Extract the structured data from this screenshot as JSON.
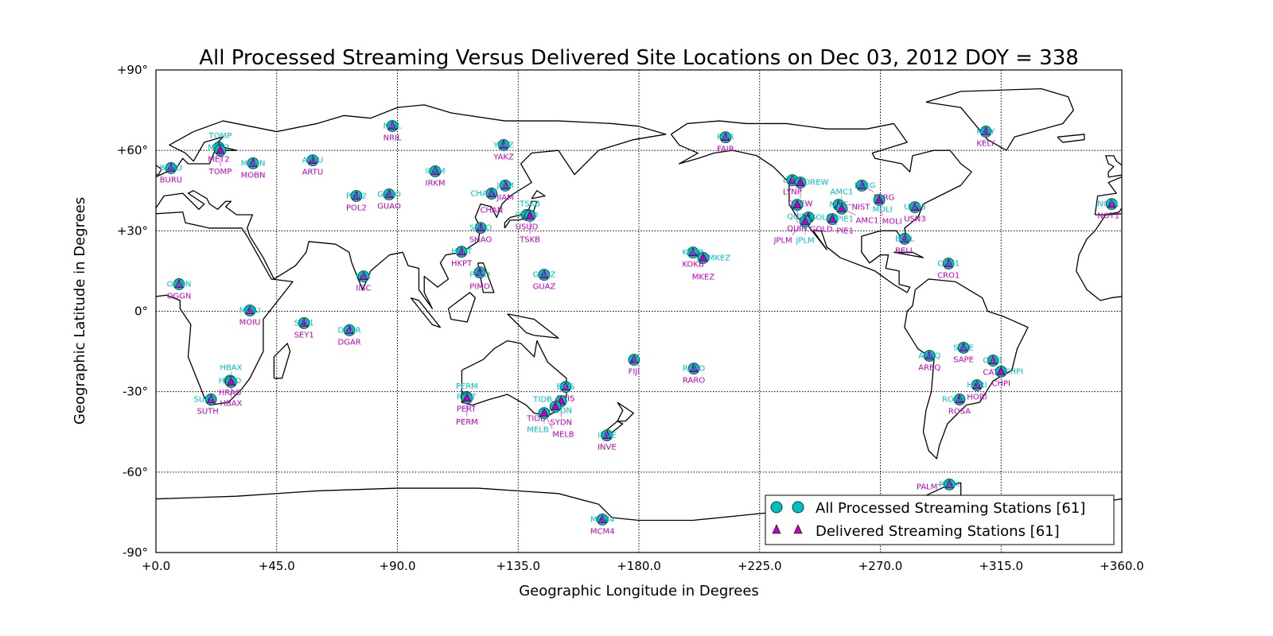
{
  "chart_data": {
    "type": "scatter",
    "title": "All Processed Streaming Versus Delivered Site Locations on Dec 03, 2012 DOY = 338",
    "xlabel": "Geographic Longitude in Degrees",
    "ylabel": "Geographic Latitude in Degrees",
    "xlim": [
      0,
      360
    ],
    "ylim": [
      -90,
      90
    ],
    "grid": true,
    "projection": "equirectangular world map with coastlines",
    "x_ticks": [
      "+0.0",
      "+45.0",
      "+90.0",
      "+135.0",
      "+180.0",
      "+225.0",
      "+270.0",
      "+315.0",
      "+360.0"
    ],
    "y_ticks": [
      "+90°",
      "+60°",
      "+30°",
      "0°",
      "-30°",
      "-60°",
      "-90°"
    ],
    "legend": {
      "placement": "lower-right",
      "entries": [
        {
          "label": "All Processed Streaming Stations [61]",
          "marker": "circle",
          "color": "#00bfbf"
        },
        {
          "label": "Delivered Streaming Stations [61]",
          "marker": "triangle",
          "color": "#bf00bf"
        }
      ]
    },
    "series": [
      {
        "name": "All Processed Streaming Stations [61]",
        "marker": "circle",
        "color": "#00bfbf"
      },
      {
        "name": "Delivered Streaming Stations [61]",
        "marker": "triangle",
        "color": "#bf00bf"
      }
    ],
    "stations": [
      {
        "id": "BURU",
        "lon": 5.6,
        "lat": 53.4
      },
      {
        "id": "MET2",
        "lon": 23.4,
        "lat": 61.1
      },
      {
        "id": "TOMP",
        "lon": 24.0,
        "lat": 60.0
      },
      {
        "id": "MOBN",
        "lon": 36.2,
        "lat": 55.2
      },
      {
        "id": "ARTU",
        "lon": 58.4,
        "lat": 56.3
      },
      {
        "id": "NRIL",
        "lon": 88.1,
        "lat": 69.1
      },
      {
        "id": "IRKM",
        "lon": 104.1,
        "lat": 52.2
      },
      {
        "id": "POL2",
        "lon": 74.7,
        "lat": 43.0
      },
      {
        "id": "GUAO",
        "lon": 86.9,
        "lat": 43.6
      },
      {
        "id": "YAKZ",
        "lon": 129.6,
        "lat": 62.0
      },
      {
        "id": "JIAM",
        "lon": 130.2,
        "lat": 46.9
      },
      {
        "id": "CHAN",
        "lon": 125.1,
        "lat": 43.9
      },
      {
        "id": "USUD",
        "lon": 138.2,
        "lat": 35.9
      },
      {
        "id": "TSKB",
        "lon": 139.4,
        "lat": 35.6
      },
      {
        "id": "SHAO",
        "lon": 121.0,
        "lat": 31.1
      },
      {
        "id": "HKPT",
        "lon": 113.9,
        "lat": 22.2
      },
      {
        "id": "PIMO",
        "lon": 120.7,
        "lat": 14.5
      },
      {
        "id": "GUAZ",
        "lon": 144.7,
        "lat": 13.6
      },
      {
        "id": "IISC",
        "lon": 77.4,
        "lat": 13.0
      },
      {
        "id": "OGGN",
        "lon": 8.6,
        "lat": 10.1
      },
      {
        "id": "MOIU",
        "lon": 35.0,
        "lat": 0.3
      },
      {
        "id": "SEY1",
        "lon": 55.2,
        "lat": -4.4
      },
      {
        "id": "DGAR",
        "lon": 72.1,
        "lat": -7.1
      },
      {
        "id": "HRAO",
        "lon": 27.6,
        "lat": -25.9
      },
      {
        "id": "HBAX",
        "lon": 28.0,
        "lat": -26.4
      },
      {
        "id": "SUTH",
        "lon": 20.5,
        "lat": -32.9
      },
      {
        "id": "PERT",
        "lon": 115.7,
        "lat": -32.0
      },
      {
        "id": "PERM",
        "lon": 115.9,
        "lat": -32.4
      },
      {
        "id": "BRIS",
        "lon": 152.7,
        "lat": -28.2
      },
      {
        "id": "SYDN",
        "lon": 151.0,
        "lat": -33.5
      },
      {
        "id": "TIDB",
        "lon": 148.9,
        "lat": -35.6
      },
      {
        "id": "MELB",
        "lon": 144.7,
        "lat": -38.0
      },
      {
        "id": "FIJI",
        "lon": 178.2,
        "lat": -18.1
      },
      {
        "id": "INVE",
        "lon": 168.1,
        "lat": -46.3
      },
      {
        "id": "MCM4",
        "lon": 166.4,
        "lat": -77.7
      },
      {
        "id": "RARO",
        "lon": 200.5,
        "lat": -21.4
      },
      {
        "id": "KOKB",
        "lon": 200.2,
        "lat": 21.9
      },
      {
        "id": "MKEZ",
        "lon": 204.0,
        "lat": 19.9
      },
      {
        "id": "FAIR",
        "lon": 212.3,
        "lat": 64.9
      },
      {
        "id": "LYNP",
        "lon": 237.2,
        "lat": 48.9
      },
      {
        "id": "DREW",
        "lon": 240.2,
        "lat": 48.0
      },
      {
        "id": "QUIN",
        "lon": 239.0,
        "lat": 39.7
      },
      {
        "id": "GOLD",
        "lon": 243.2,
        "lat": 35.0
      },
      {
        "id": "JPLM",
        "lon": 242.0,
        "lat": 33.5
      },
      {
        "id": "PIE1",
        "lon": 252.1,
        "lat": 34.4
      },
      {
        "id": "NIST",
        "lon": 254.4,
        "lat": 39.7
      },
      {
        "id": "AMC1",
        "lon": 255.6,
        "lat": 38.3
      },
      {
        "id": "FARG",
        "lon": 263.1,
        "lat": 46.9
      },
      {
        "id": "MOLI",
        "lon": 269.6,
        "lat": 41.5
      },
      {
        "id": "USN3",
        "lon": 282.9,
        "lat": 38.8
      },
      {
        "id": "BELL",
        "lon": 279.1,
        "lat": 27.0
      },
      {
        "id": "CRO1",
        "lon": 295.4,
        "lat": 17.8
      },
      {
        "id": "KELY",
        "lon": 309.3,
        "lat": 67.0
      },
      {
        "id": "NOT1",
        "lon": 356.2,
        "lat": 40.0
      },
      {
        "id": "AREQ",
        "lon": 288.3,
        "lat": -16.6
      },
      {
        "id": "SAPE",
        "lon": 301.0,
        "lat": -13.6
      },
      {
        "id": "CAT1",
        "lon": 312.0,
        "lat": -18.4
      },
      {
        "id": "CHPI",
        "lon": 315.0,
        "lat": -22.5
      },
      {
        "id": "HORI",
        "lon": 306.0,
        "lat": -27.6
      },
      {
        "id": "ROSA",
        "lon": 299.5,
        "lat": -32.9
      },
      {
        "id": "PALM",
        "lon": 295.7,
        "lat": -64.6
      }
    ]
  }
}
